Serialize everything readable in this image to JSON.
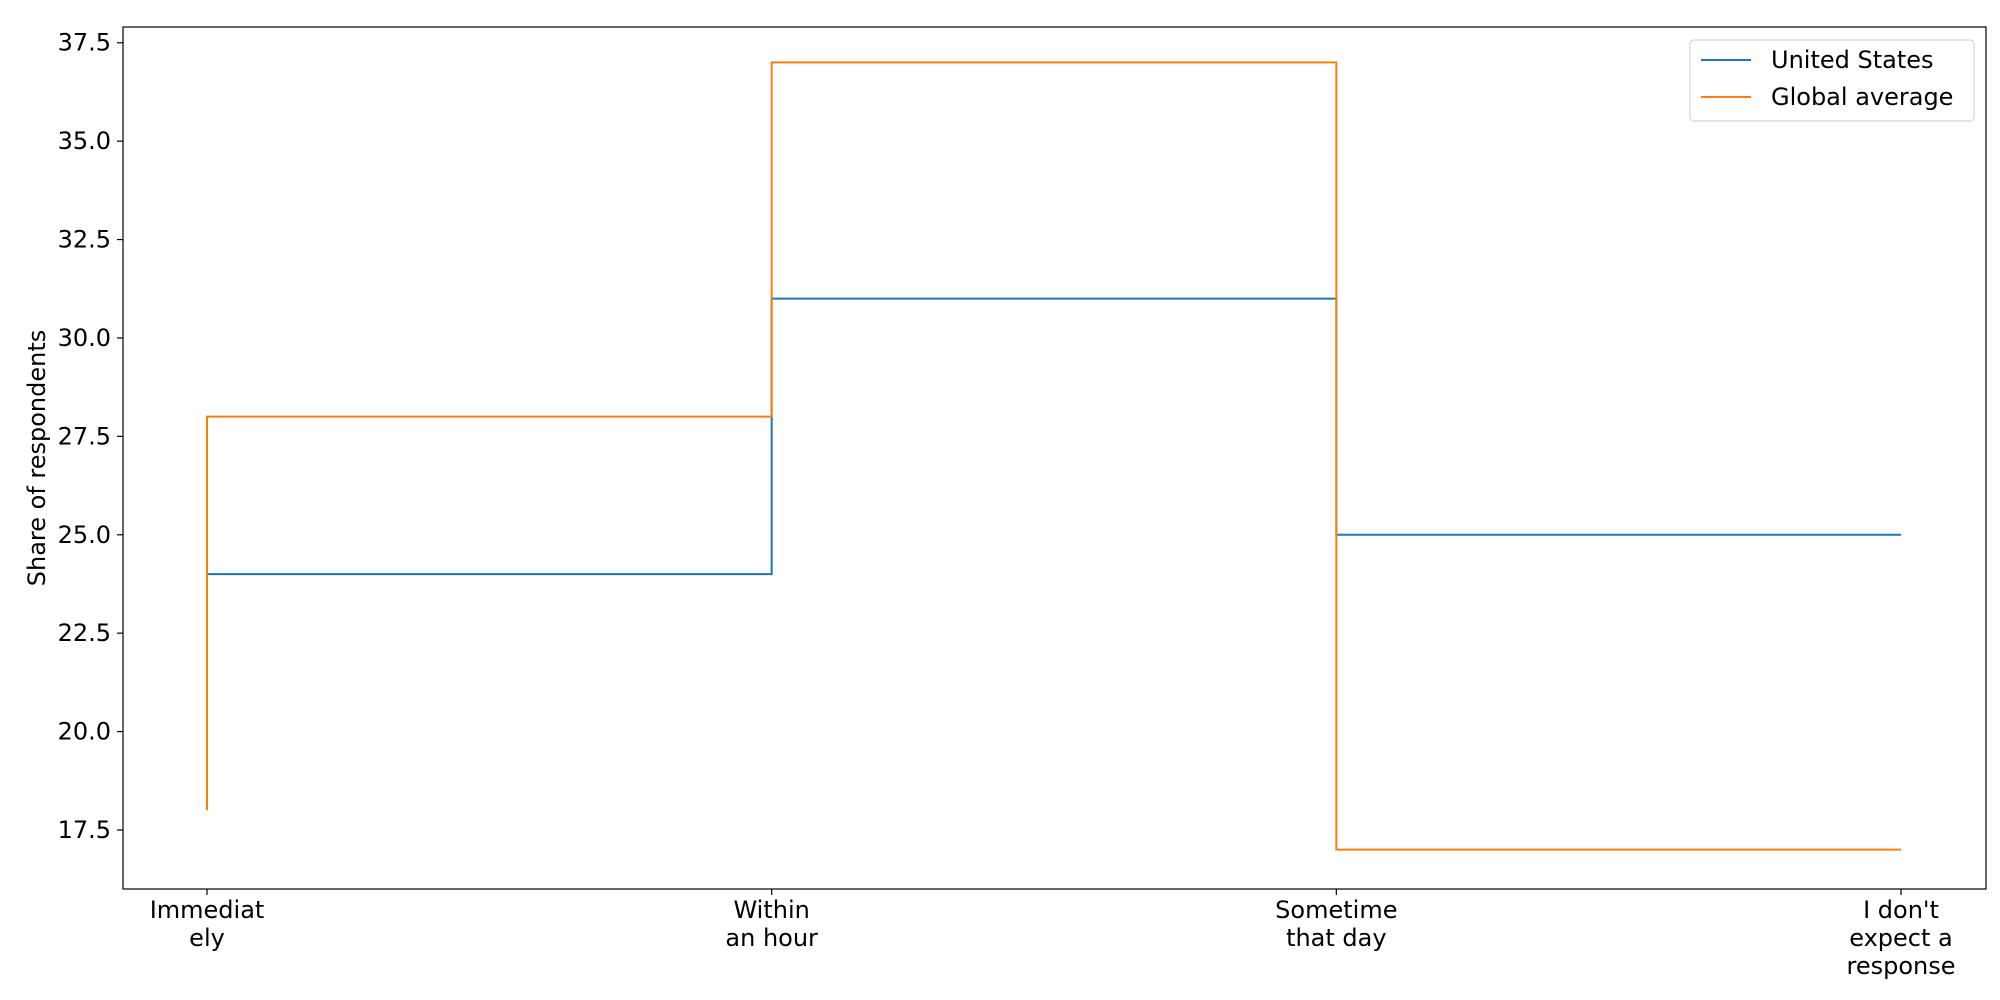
{
  "chart_data": {
    "type": "line",
    "step": "post",
    "title": "",
    "xlabel": "",
    "ylabel": "Share of respondents",
    "categories": [
      [
        "Immediat",
        "ely"
      ],
      [
        "Within",
        "an hour"
      ],
      [
        "Sometime",
        "that day"
      ],
      [
        "I don't",
        "expect a",
        "response"
      ]
    ],
    "ylim": [
      16.0,
      37.9
    ],
    "yticks": [
      "17.5",
      "20.0",
      "22.5",
      "25.0",
      "27.5",
      "30.0",
      "32.5",
      "35.0",
      "37.5"
    ],
    "ytick_values": [
      17.5,
      20.0,
      22.5,
      25.0,
      27.5,
      30.0,
      32.5,
      35.0,
      37.5
    ],
    "grid": false,
    "legend_position": "top-right",
    "series": [
      {
        "name": "United States",
        "color": "#1f77b4",
        "values": [
          24,
          31,
          25,
          25
        ]
      },
      {
        "name": "Global average",
        "color": "#ff7f0e",
        "values": [
          28,
          37,
          17,
          17
        ]
      }
    ],
    "global_series_start": 18
  }
}
